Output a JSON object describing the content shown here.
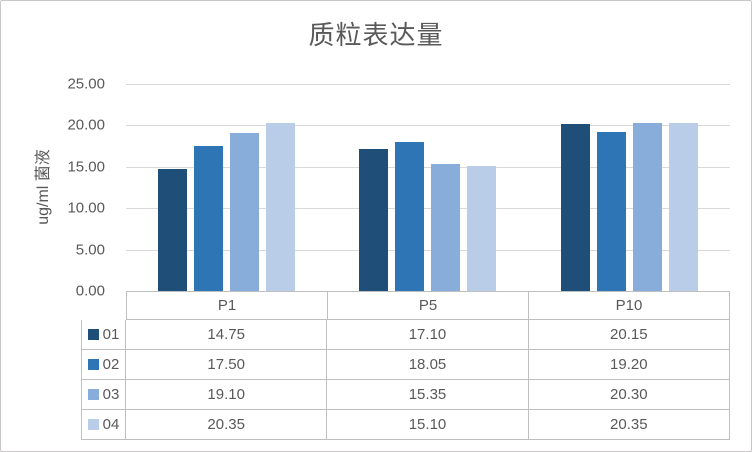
{
  "window": {
    "background": "#FFFFFF",
    "frame_border_color": "#C9C7C7"
  },
  "chart_data": {
    "type": "bar",
    "title": "质粒表达量",
    "ylabel": "ug/ml 菌液",
    "xlabel": "",
    "categories": [
      "P1",
      "P5",
      "P10"
    ],
    "series": [
      {
        "name": "01",
        "color": "#1F4E79",
        "values": [
          14.75,
          17.1,
          20.15
        ]
      },
      {
        "name": "02",
        "color": "#2E75B6",
        "values": [
          17.5,
          18.05,
          19.2
        ]
      },
      {
        "name": "03",
        "color": "#88ADDB",
        "values": [
          19.1,
          15.35,
          20.3
        ]
      },
      {
        "name": "04",
        "color": "#B9CDE8",
        "values": [
          20.35,
          15.1,
          20.35
        ]
      }
    ],
    "ylim": [
      0,
      25
    ],
    "ytick_step": 5,
    "tick_format_decimals": 2,
    "value_format_decimals": 2,
    "grid": true,
    "gridline_color": "#D9D9D9",
    "axis_color": "#BFBFBF",
    "text_color": "#595959",
    "legend_position": "data-table"
  }
}
